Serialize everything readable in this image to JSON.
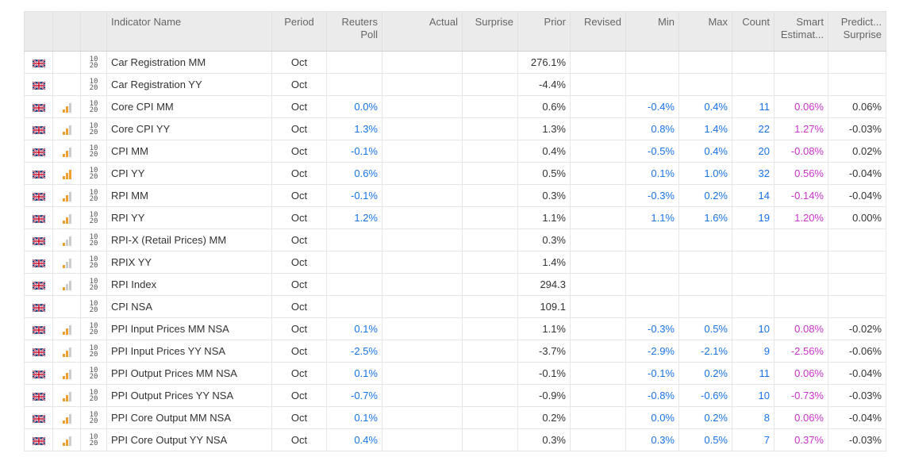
{
  "headers": {
    "name": "Indicator Name",
    "period": "Period",
    "poll": "Reuters Poll",
    "actual": "Actual",
    "surprise": "Surprise",
    "prior": "Prior",
    "revised": "Revised",
    "min": "Min",
    "max": "Max",
    "count": "Count",
    "smart": "Smart Estimat...",
    "predict": "Predict... Surprise"
  },
  "colors": {
    "blue": "#1a73e8",
    "pink": "#cc33cc",
    "bar_active": "#f0a030",
    "bar_inactive": "#cccccc"
  },
  "rows": [
    {
      "name": "Car Registration MM",
      "period": "Oct",
      "poll": "",
      "actual": "",
      "surprise": "",
      "prior": "276.1%",
      "revised": "",
      "min": "",
      "max": "",
      "count": "",
      "smart": "",
      "predict": "",
      "importance": 0
    },
    {
      "name": "Car Registration YY",
      "period": "Oct",
      "poll": "",
      "actual": "",
      "surprise": "",
      "prior": "-4.4%",
      "revised": "",
      "min": "",
      "max": "",
      "count": "",
      "smart": "",
      "predict": "",
      "importance": 0
    },
    {
      "name": "Core CPI MM",
      "period": "Oct",
      "poll": "0.0%",
      "actual": "",
      "surprise": "",
      "prior": "0.6%",
      "revised": "",
      "min": "-0.4%",
      "max": "0.4%",
      "count": "11",
      "smart": "0.06%",
      "predict": "0.06%",
      "importance": 2
    },
    {
      "name": "Core CPI YY",
      "period": "Oct",
      "poll": "1.3%",
      "actual": "",
      "surprise": "",
      "prior": "1.3%",
      "revised": "",
      "min": "0.8%",
      "max": "1.4%",
      "count": "22",
      "smart": "1.27%",
      "predict": "-0.03%",
      "importance": 2
    },
    {
      "name": "CPI MM",
      "period": "Oct",
      "poll": "-0.1%",
      "actual": "",
      "surprise": "",
      "prior": "0.4%",
      "revised": "",
      "min": "-0.5%",
      "max": "0.4%",
      "count": "20",
      "smart": "-0.08%",
      "predict": "0.02%",
      "importance": 2
    },
    {
      "name": "CPI YY",
      "period": "Oct",
      "poll": "0.6%",
      "actual": "",
      "surprise": "",
      "prior": "0.5%",
      "revised": "",
      "min": "0.1%",
      "max": "1.0%",
      "count": "32",
      "smart": "0.56%",
      "predict": "-0.04%",
      "importance": 3
    },
    {
      "name": "RPI MM",
      "period": "Oct",
      "poll": "-0.1%",
      "actual": "",
      "surprise": "",
      "prior": "0.3%",
      "revised": "",
      "min": "-0.3%",
      "max": "0.2%",
      "count": "14",
      "smart": "-0.14%",
      "predict": "-0.04%",
      "importance": 2
    },
    {
      "name": "RPI YY",
      "period": "Oct",
      "poll": "1.2%",
      "actual": "",
      "surprise": "",
      "prior": "1.1%",
      "revised": "",
      "min": "1.1%",
      "max": "1.6%",
      "count": "19",
      "smart": "1.20%",
      "predict": "0.00%",
      "importance": 2
    },
    {
      "name": "RPI-X (Retail Prices) MM",
      "period": "Oct",
      "poll": "",
      "actual": "",
      "surprise": "",
      "prior": "0.3%",
      "revised": "",
      "min": "",
      "max": "",
      "count": "",
      "smart": "",
      "predict": "",
      "importance": 1
    },
    {
      "name": "RPIX YY",
      "period": "Oct",
      "poll": "",
      "actual": "",
      "surprise": "",
      "prior": "1.4%",
      "revised": "",
      "min": "",
      "max": "",
      "count": "",
      "smart": "",
      "predict": "",
      "importance": 1
    },
    {
      "name": "RPI Index",
      "period": "Oct",
      "poll": "",
      "actual": "",
      "surprise": "",
      "prior": "294.3",
      "revised": "",
      "min": "",
      "max": "",
      "count": "",
      "smart": "",
      "predict": "",
      "importance": 1
    },
    {
      "name": "CPI NSA",
      "period": "Oct",
      "poll": "",
      "actual": "",
      "surprise": "",
      "prior": "109.1",
      "revised": "",
      "min": "",
      "max": "",
      "count": "",
      "smart": "",
      "predict": "",
      "importance": 0
    },
    {
      "name": "PPI Input Prices MM NSA",
      "period": "Oct",
      "poll": "0.1%",
      "actual": "",
      "surprise": "",
      "prior": "1.1%",
      "revised": "",
      "min": "-0.3%",
      "max": "0.5%",
      "count": "10",
      "smart": "0.08%",
      "predict": "-0.02%",
      "importance": 2
    },
    {
      "name": "PPI Input Prices YY NSA",
      "period": "Oct",
      "poll": "-2.5%",
      "actual": "",
      "surprise": "",
      "prior": "-3.7%",
      "revised": "",
      "min": "-2.9%",
      "max": "-2.1%",
      "count": "9",
      "smart": "-2.56%",
      "predict": "-0.06%",
      "importance": 2
    },
    {
      "name": "PPI Output Prices MM NSA",
      "period": "Oct",
      "poll": "0.1%",
      "actual": "",
      "surprise": "",
      "prior": "-0.1%",
      "revised": "",
      "min": "-0.1%",
      "max": "0.2%",
      "count": "11",
      "smart": "0.06%",
      "predict": "-0.04%",
      "importance": 2
    },
    {
      "name": "PPI Output Prices YY NSA",
      "period": "Oct",
      "poll": "-0.7%",
      "actual": "",
      "surprise": "",
      "prior": "-0.9%",
      "revised": "",
      "min": "-0.8%",
      "max": "-0.6%",
      "count": "10",
      "smart": "-0.73%",
      "predict": "-0.03%",
      "importance": 2
    },
    {
      "name": "PPI Core Output MM NSA",
      "period": "Oct",
      "poll": "0.1%",
      "actual": "",
      "surprise": "",
      "prior": "0.2%",
      "revised": "",
      "min": "0.0%",
      "max": "0.2%",
      "count": "8",
      "smart": "0.06%",
      "predict": "-0.04%",
      "importance": 2
    },
    {
      "name": "PPI Core Output YY NSA",
      "period": "Oct",
      "poll": "0.4%",
      "actual": "",
      "surprise": "",
      "prior": "0.3%",
      "revised": "",
      "min": "0.3%",
      "max": "0.5%",
      "count": "7",
      "smart": "0.37%",
      "predict": "-0.03%",
      "importance": 2
    }
  ]
}
